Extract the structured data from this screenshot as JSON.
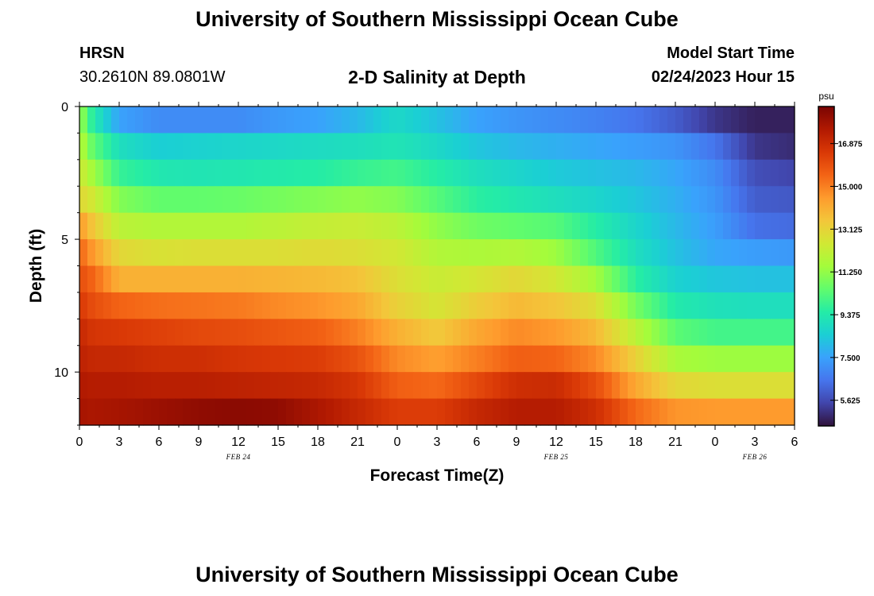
{
  "header": {
    "title": "University of Southern Mississippi Ocean Cube",
    "station": "HRSN",
    "coords": "30.2610N  89.0801W",
    "subtitle": "2-D Salinity at Depth",
    "model_start_label": "Model Start Time",
    "model_start_value": "02/24/2023 Hour 15"
  },
  "footer": {
    "title": "University of Southern Mississippi Ocean Cube"
  },
  "chart_data": {
    "type": "heatmap",
    "title": "2-D Salinity at Depth",
    "xlabel": "Forecast Time(Z)",
    "ylabel": "Depth (ft)",
    "x_ticks": [
      "0",
      "3",
      "6",
      "9",
      "12",
      "15",
      "18",
      "21",
      "0",
      "3",
      "6",
      "9",
      "12",
      "15",
      "18",
      "21",
      "0",
      "3",
      "6"
    ],
    "x_range_hours": [
      0,
      54
    ],
    "date_labels": [
      {
        "label": "FEB 24",
        "hour": 12
      },
      {
        "label": "FEB 25",
        "hour": 36
      },
      {
        "label": "FEB 26",
        "hour": 51
      }
    ],
    "y_ticks": [
      "0",
      "5",
      "10"
    ],
    "y_range_ft": [
      0,
      12
    ],
    "colorbar": {
      "unit": "psu",
      "ticks": [
        "16.875",
        "15.000",
        "13.125",
        "11.250",
        "9.375",
        "7.500",
        "5.625"
      ],
      "range": [
        4.5,
        18.5
      ],
      "colors": [
        "#30123b",
        "#4145ab",
        "#4675ed",
        "#39a2fc",
        "#1bcfd4",
        "#24eca6",
        "#61fc6c",
        "#a4fc3b",
        "#d1e834",
        "#f3c63a",
        "#fe9b2d",
        "#f36315",
        "#d93806",
        "#b11901",
        "#7a0403"
      ]
    },
    "depth_levels": 12,
    "value_keys": {
      "hours": [
        0,
        1,
        3,
        6,
        9,
        12,
        15,
        18,
        21,
        24,
        27,
        30,
        33,
        36,
        39,
        42,
        45,
        48,
        51,
        54
      ],
      "rows": [
        [
          11.5,
          9.5,
          7.5,
          7.0,
          7.0,
          7.0,
          7.3,
          7.5,
          8.0,
          8.8,
          8.2,
          7.5,
          7.2,
          7.0,
          6.8,
          6.5,
          6.0,
          5.2,
          4.8,
          4.8
        ],
        [
          12.0,
          10.5,
          9.0,
          8.5,
          8.6,
          8.7,
          8.8,
          8.9,
          9.0,
          9.2,
          8.8,
          8.3,
          8.0,
          7.8,
          7.6,
          7.4,
          7.2,
          6.5,
          5.2,
          5.0
        ],
        [
          12.5,
          11.5,
          9.8,
          9.3,
          9.2,
          9.3,
          9.4,
          9.5,
          9.8,
          10.0,
          9.5,
          9.0,
          8.7,
          8.4,
          8.2,
          8.0,
          7.6,
          7.0,
          5.7,
          5.5
        ],
        [
          13.0,
          12.5,
          11.0,
          10.5,
          10.5,
          10.6,
          10.8,
          11.0,
          11.2,
          11.0,
          10.3,
          9.6,
          9.3,
          9.0,
          8.7,
          8.3,
          7.8,
          7.2,
          6.0,
          5.9
        ],
        [
          14.5,
          13.5,
          12.0,
          11.8,
          11.8,
          11.8,
          12.0,
          12.2,
          12.3,
          12.0,
          11.2,
          10.7,
          10.5,
          10.3,
          9.5,
          8.7,
          8.0,
          7.4,
          6.4,
          6.3
        ],
        [
          15.5,
          14.5,
          13.0,
          12.7,
          12.8,
          12.8,
          12.8,
          12.9,
          12.8,
          12.5,
          11.8,
          11.7,
          11.8,
          11.4,
          10.2,
          9.0,
          8.2,
          7.6,
          7.4,
          7.3
        ],
        [
          16.0,
          15.5,
          14.0,
          14.0,
          14.0,
          14.0,
          13.9,
          13.8,
          13.6,
          12.8,
          12.3,
          12.6,
          13.0,
          12.5,
          11.5,
          9.6,
          8.6,
          8.3,
          8.2,
          8.2
        ],
        [
          16.5,
          16.0,
          15.5,
          15.3,
          15.2,
          15.1,
          14.8,
          14.6,
          14.2,
          13.2,
          12.6,
          13.3,
          13.8,
          13.5,
          12.8,
          10.8,
          9.4,
          9.1,
          9.0,
          9.0
        ],
        [
          17.0,
          16.6,
          16.5,
          16.3,
          16.1,
          16.0,
          15.8,
          15.6,
          15.0,
          14.0,
          13.4,
          14.2,
          14.8,
          14.5,
          13.8,
          12.0,
          10.4,
          10.0,
          10.0,
          10.0
        ],
        [
          17.2,
          17.0,
          17.0,
          16.8,
          16.8,
          16.6,
          16.5,
          16.4,
          15.9,
          14.8,
          14.4,
          15.0,
          15.6,
          15.5,
          14.8,
          13.2,
          11.6,
          11.4,
          11.4,
          11.4
        ],
        [
          17.5,
          17.4,
          17.4,
          17.3,
          17.3,
          17.2,
          17.1,
          17.0,
          16.6,
          15.6,
          15.4,
          16.1,
          16.8,
          16.9,
          16.0,
          14.2,
          13.0,
          12.8,
          12.8,
          12.8
        ],
        [
          17.7,
          17.6,
          17.7,
          17.9,
          18.1,
          18.2,
          18.1,
          17.6,
          17.0,
          16.4,
          16.4,
          17.0,
          17.4,
          17.4,
          16.8,
          15.4,
          14.6,
          14.5,
          14.5,
          14.5
        ]
      ]
    }
  }
}
